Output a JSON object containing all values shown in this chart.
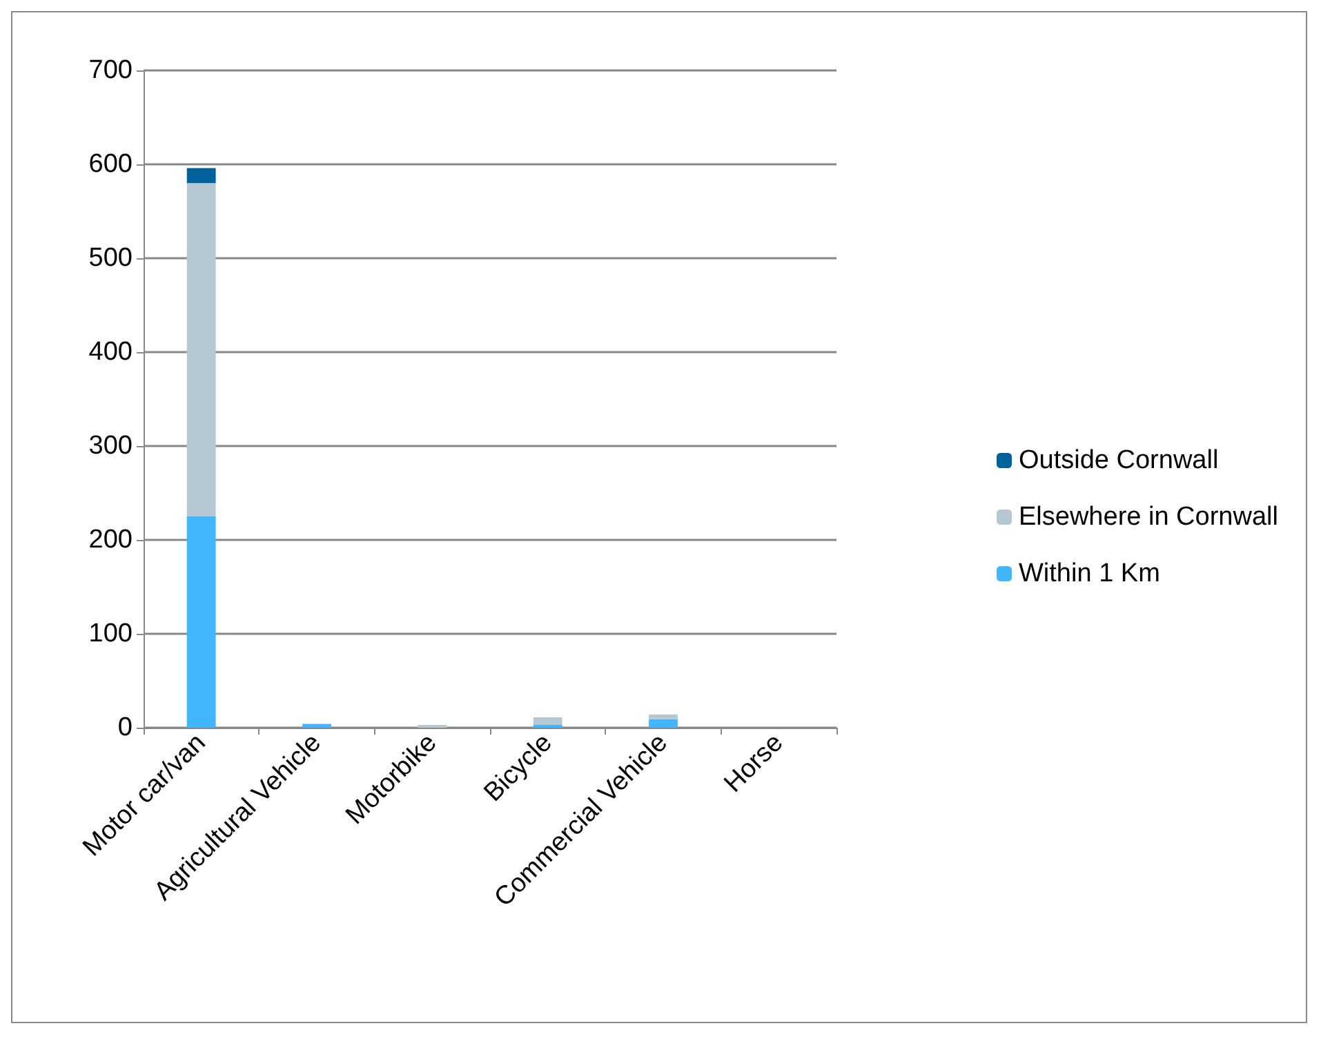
{
  "chart_data": {
    "type": "bar",
    "stacked": true,
    "categories": [
      "Motor car/van",
      "Agricultural Vehicle",
      "Motorbike",
      "Bicycle",
      "Commercial Vehicle",
      "Horse"
    ],
    "series": [
      {
        "name": "Within 1 Km",
        "color": "#41b6ff",
        "values": [
          225,
          4,
          0,
          3,
          9,
          0
        ]
      },
      {
        "name": "Elsewhere in Cornwall",
        "color": "#b4c7d3",
        "values": [
          355,
          0,
          3,
          8,
          5,
          0
        ]
      },
      {
        "name": "Outside Cornwall",
        "color": "#00629b",
        "values": [
          16,
          0,
          0,
          0,
          0,
          0
        ]
      }
    ],
    "ylim": [
      0,
      700
    ],
    "yticks": [
      0,
      100,
      200,
      300,
      400,
      500,
      600,
      700
    ],
    "grid": "y",
    "legend": "right"
  }
}
